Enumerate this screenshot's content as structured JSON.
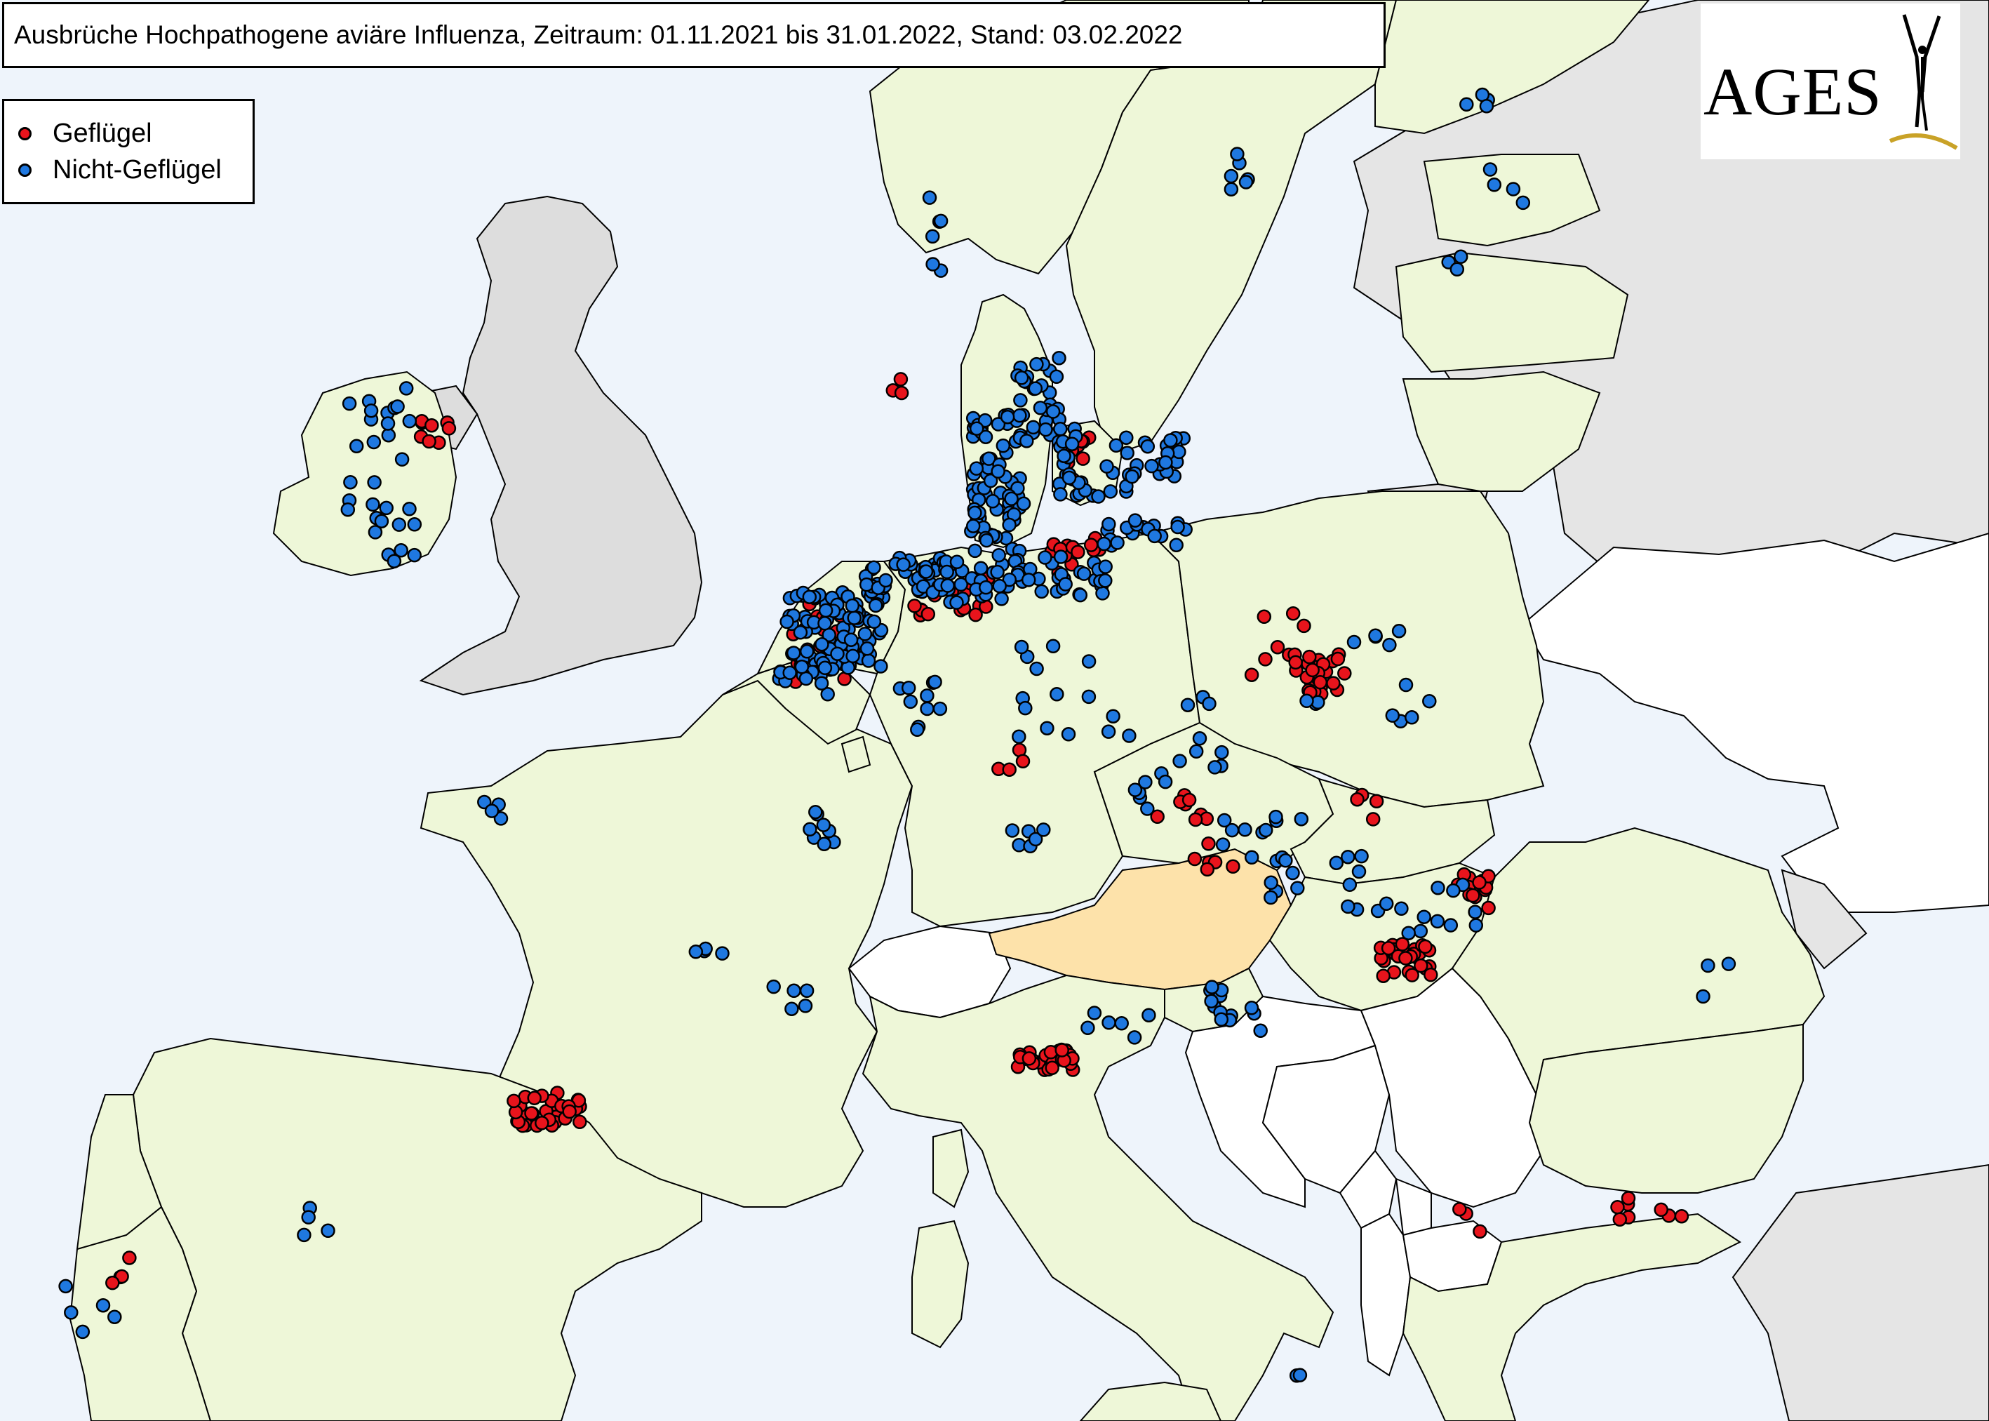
{
  "title": "Ausbrüche Hochpathogene aviäre Influenza, Zeitraum: 01.11.2021 bis 31.01.2022, Stand: 03.02.2022",
  "legend": {
    "poultry": {
      "label": "Geflügel",
      "color": "#e8141c"
    },
    "non_poultry": {
      "label": "Nicht-Geflügel",
      "color": "#1f78e0"
    }
  },
  "logo": {
    "text": "AGES"
  },
  "colors": {
    "sea": "#eef4fb",
    "affected_country": "#eef7d8",
    "austria": "#fde2aa",
    "uk": "#dddddd",
    "unaffected_country": "#ffffff",
    "non_eu": "#e5e5e5",
    "border": "#000000"
  }
}
